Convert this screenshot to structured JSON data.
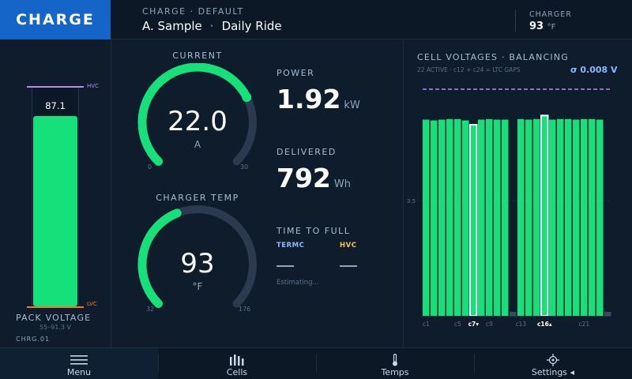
{
  "header": {
    "mode": "CHARGE",
    "profile_label": "CHARGE · DEFAULT",
    "driver": "A. Sample",
    "separator": "·",
    "ride_mode": "Daily Ride",
    "charger_label": "CHARGER",
    "charger_temp": "93",
    "charger_temp_unit": "°F"
  },
  "pack": {
    "value": "87.1",
    "fill_fraction": 0.88,
    "hvc_label": "HVC",
    "lvc_label": "LVC",
    "title": "PACK VOLTAGE",
    "range": "55–91.3 V",
    "id": "CHRG.01"
  },
  "current_gauge": {
    "title": "CURRENT",
    "value": "22.0",
    "unit": "A",
    "min_label": "0",
    "max_label": "30",
    "fraction": 0.733,
    "color": "#16e07a"
  },
  "temp_gauge": {
    "title": "CHARGER TEMP",
    "value": "93",
    "unit": "°F",
    "min_label": "32",
    "max_label": "176",
    "fraction": 0.42,
    "color": "#16e07a"
  },
  "stats": {
    "power_label": "POWER",
    "power_value": "1.92",
    "power_unit": "kW",
    "delivered_label": "DELIVERED",
    "delivered_value": "792",
    "delivered_unit": "Wh",
    "ttf_label": "TIME TO FULL",
    "termc_label": "TERMC",
    "termc_color": "#8fb6ff",
    "hvc_label": "HVC",
    "hvc_color": "#f5c842",
    "estimating": "Estimating..."
  },
  "cells": {
    "title": "CELL VOLTAGES · BALANCING",
    "subtitle": "22 ACTIVE · c12 + c24 = LTC GAPS",
    "sigma": "σ 0.008 V",
    "y_tick": "3.5",
    "colors": {
      "active": "#16e07a",
      "gap": "#3a4c62",
      "highlight": "#ffffff",
      "hvc_line": "#b48cf0"
    },
    "levels": [
      0.994,
      0.99,
      0.994,
      0.997,
      0.997,
      0.99,
      0.968,
      0.994,
      0.997,
      0.994,
      0.994,
      0.02,
      0.997,
      0.994,
      0.997,
      1.015,
      0.994,
      0.997,
      0.997,
      0.994,
      0.997,
      0.997,
      0.994,
      0.02
    ],
    "gaps": [
      12,
      24
    ],
    "balancing_low": 7,
    "balancing_high": 16,
    "x_labels": [
      {
        "cell": 1,
        "text": "c1"
      },
      {
        "cell": 5,
        "text": "c5"
      },
      {
        "cell": 7,
        "text": "c7▾",
        "bold": true
      },
      {
        "cell": 9,
        "text": "c9"
      },
      {
        "cell": 13,
        "text": "c13"
      },
      {
        "cell": 16,
        "text": "c16▴",
        "bold": true
      },
      {
        "cell": 21,
        "text": "c21"
      }
    ]
  },
  "nav": {
    "items": [
      {
        "label": "Menu",
        "icon": "menu-icon"
      },
      {
        "label": "Cells",
        "icon": "bars-icon"
      },
      {
        "label": "Temps",
        "icon": "thermometer-icon"
      },
      {
        "label": "Settings ◂",
        "icon": "gear-icon"
      }
    ]
  }
}
